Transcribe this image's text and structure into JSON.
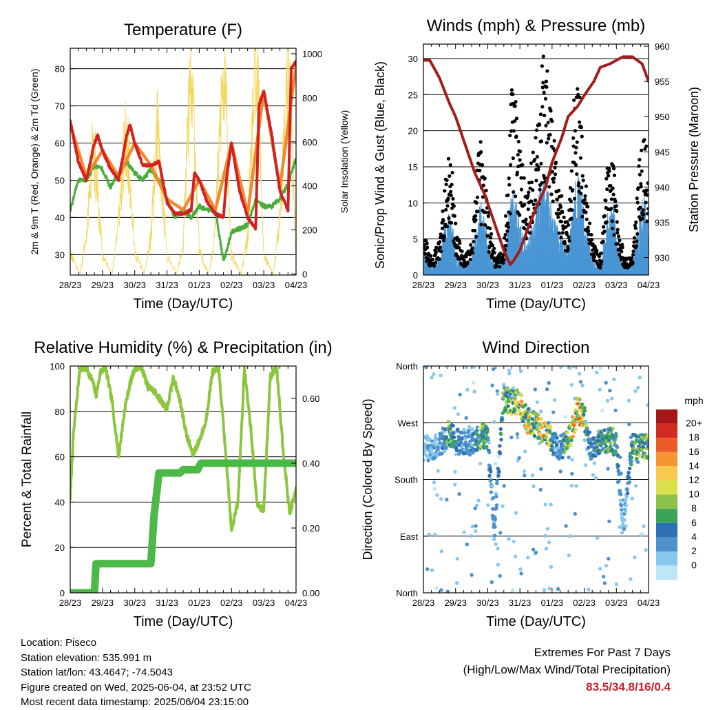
{
  "panels": {
    "temperature": {
      "title": "Temperature (F)",
      "ylabel_left": "2m & 9m T (Red, Orange) & 2m Td (Green)",
      "ylabel_right": "Solar Insolation (Yellow)",
      "xlabel": "Time (Day/UTC)"
    },
    "winds": {
      "title": "Winds (mph) & Pressure (mb)",
      "ylabel_left": "Sonic/Prop Wind & Gust (Blue, Black)",
      "ylabel_right": "Station Pressure (Maroon)",
      "xlabel": "Time (Day/UTC)"
    },
    "humidity": {
      "title": "Relative Humidity (%) & Precipitation (in)",
      "ylabel_left": "Percent & Total Rainfall",
      "xlabel": "Time (Day/UTC)"
    },
    "direction": {
      "title": "Wind Direction",
      "ylabel_left": "Direction (Colored By Speed)",
      "xlabel": "Time (Day/UTC)",
      "colorbar_title": "mph",
      "colorbar_labels": [
        "20+",
        "18",
        "16",
        "14",
        "12",
        "10",
        "8",
        "6",
        "4",
        "2",
        "0"
      ]
    }
  },
  "info": {
    "location": "Location: Piseco",
    "elevation": "Station elevation: 535.991 m",
    "latlon": "Station lat/lon: 43.4647; -74.5043",
    "created": "Figure created on Wed, 2025-06-04, at 23:52 UTC",
    "recent": "Most recent data timestamp: 2025/06/04 23:15:00"
  },
  "extremes": {
    "title": "Extremes For Past 7 Days",
    "subtitle": "(High/Low/Max Wind/Total Precipitation)",
    "values": "83.5/34.8/16/0.4"
  },
  "colors": {
    "temp2m": "#d42020",
    "temp9m": "#f08a2c",
    "dewpoint": "#4aac3c",
    "insolation": "#f5d659",
    "wind": "#4a96d4",
    "gust": "#000000",
    "pressure": "#a21c1c",
    "rh": "#8cc63f",
    "precip": "#4cb848",
    "extremes": "#c8202a",
    "speed_scale": [
      "#bde6f8",
      "#88c8ee",
      "#4c90cc",
      "#2d70b3",
      "#3aa55a",
      "#8bc34a",
      "#d9e04a",
      "#f7c94e",
      "#f49634",
      "#ec5c28",
      "#d32a22",
      "#a51717"
    ]
  },
  "chart_data": [
    {
      "type": "line",
      "title": "Temperature (F)",
      "xlabel": "Time (Day/UTC)",
      "ylabel": "2m & 9m T (Red, Orange) & 2m Td (Green)",
      "y2label": "Solar Insolation (Yellow)",
      "x_ticks": [
        "28/23",
        "29/23",
        "30/23",
        "31/23",
        "01/23",
        "02/23",
        "03/23",
        "04/23"
      ],
      "xlim": [
        0,
        7
      ],
      "ylim": [
        24.5,
        85.5
      ],
      "y_ticks": [
        30,
        40,
        50,
        60,
        70,
        80
      ],
      "y2lim": [
        -5,
        1025
      ],
      "y2_ticks": [
        0,
        200,
        400,
        600,
        800,
        1000
      ],
      "grid": true,
      "series": [
        {
          "name": "2m T",
          "color": "#d42020",
          "axis": "left",
          "x": [
            0,
            0.25,
            0.5,
            0.75,
            0.85,
            1.0,
            1.25,
            1.5,
            1.75,
            1.85,
            2.0,
            2.25,
            2.5,
            2.75,
            3.0,
            3.25,
            3.5,
            3.75,
            3.85,
            4.0,
            4.25,
            4.5,
            4.75,
            4.85,
            5.0,
            5.25,
            5.5,
            5.75,
            5.85,
            6.0,
            6.25,
            6.5,
            6.75,
            6.85,
            7.0
          ],
          "y": [
            66,
            55,
            50,
            60,
            62,
            58,
            53,
            50,
            62,
            65,
            60,
            54,
            54,
            55,
            44,
            41,
            41,
            42,
            52,
            50,
            44,
            41,
            40,
            51,
            60,
            47,
            40,
            37,
            70,
            74,
            62,
            47,
            42,
            80,
            82
          ]
        },
        {
          "name": "9m T",
          "color": "#f08a2c",
          "axis": "left",
          "x": [
            0,
            0.5,
            1.0,
            1.5,
            2.0,
            2.5,
            3.0,
            3.5,
            4.0,
            4.5,
            5.0,
            5.5,
            6.0,
            6.5,
            7.0
          ],
          "y": [
            65,
            51,
            58,
            51,
            60,
            54,
            45,
            42,
            50,
            42,
            60,
            41,
            74,
            48,
            81
          ]
        },
        {
          "name": "2m Td",
          "color": "#4aac3c",
          "axis": "left",
          "x": [
            0,
            0.25,
            0.5,
            0.75,
            1.0,
            1.25,
            1.5,
            1.75,
            2.0,
            2.25,
            2.5,
            2.75,
            3.0,
            3.25,
            3.5,
            3.75,
            4.0,
            4.25,
            4.5,
            4.75,
            5.0,
            5.25,
            5.5,
            5.75,
            6.0,
            6.25,
            6.5,
            6.75,
            7.0
          ],
          "y": [
            42,
            50,
            50,
            54,
            53,
            48,
            52,
            55,
            52,
            50,
            53,
            50,
            45,
            40,
            42,
            40,
            43,
            42,
            42,
            28,
            36,
            37,
            38,
            45,
            43,
            43,
            45,
            49,
            56
          ]
        },
        {
          "name": "Solar Insolation",
          "color": "#f5d659",
          "axis": "right",
          "x": [
            0,
            0.3,
            0.5,
            0.7,
            0.82,
            1.0,
            1.3,
            1.5,
            1.7,
            1.82,
            2.0,
            2.3,
            2.5,
            2.7,
            2.82,
            3.0,
            3.3,
            3.5,
            3.7,
            3.82,
            4.0,
            4.3,
            4.5,
            4.7,
            4.82,
            5.0,
            5.3,
            5.5,
            5.7,
            5.82,
            6.0,
            6.3,
            6.5,
            6.7,
            6.82,
            7.0
          ],
          "y": [
            120,
            0,
            200,
            780,
            500,
            100,
            0,
            300,
            720,
            650,
            120,
            0,
            200,
            780,
            500,
            100,
            0,
            150,
            980,
            900,
            120,
            0,
            250,
            1000,
            950,
            100,
            0,
            200,
            1000,
            1000,
            100,
            0,
            300,
            980,
            920,
            80
          ]
        }
      ]
    },
    {
      "type": "scatter",
      "title": "Winds (mph) & Pressure (mb)",
      "xlabel": "Time (Day/UTC)",
      "ylabel": "Sonic/Prop Wind & Gust (Blue, Black)",
      "y2label": "Station Pressure (Maroon)",
      "x_ticks": [
        "28/23",
        "29/23",
        "30/23",
        "31/23",
        "01/23",
        "02/23",
        "03/23",
        "04/23"
      ],
      "xlim": [
        0,
        7
      ],
      "ylim": [
        0,
        32
      ],
      "y_ticks": [
        0,
        5,
        10,
        15,
        20,
        25,
        30
      ],
      "y2lim": [
        927.5,
        960.3
      ],
      "y2_ticks": [
        930,
        935,
        940,
        945,
        950,
        955,
        960
      ],
      "grid": true,
      "series": [
        {
          "name": "Sonic/Prop Wind",
          "color": "#4a96d4",
          "axis": "left",
          "x": [
            0,
            0.25,
            0.5,
            0.75,
            0.9,
            1.0,
            1.25,
            1.5,
            1.75,
            1.9,
            2.0,
            2.25,
            2.5,
            2.75,
            2.9,
            3.0,
            3.25,
            3.5,
            3.75,
            3.9,
            4.0,
            4.25,
            4.5,
            4.75,
            4.9,
            5.0,
            5.25,
            5.5,
            5.75,
            5.9,
            6.0,
            6.25,
            6.5,
            6.75,
            6.9,
            7.0
          ],
          "y": [
            3,
            1,
            2,
            8,
            6,
            3,
            1,
            2,
            9,
            8,
            4,
            1,
            2,
            10,
            9,
            6,
            4,
            8,
            12,
            10,
            8,
            5,
            3,
            12,
            11,
            7,
            2,
            1,
            8,
            10,
            4,
            1,
            1,
            9,
            10,
            5
          ]
        },
        {
          "name": "Gust",
          "color": "#000000",
          "axis": "left",
          "x": [
            0,
            0.25,
            0.5,
            0.75,
            0.9,
            1.0,
            1.25,
            1.5,
            1.75,
            1.9,
            2.0,
            2.25,
            2.5,
            2.75,
            2.9,
            3.0,
            3.25,
            3.5,
            3.75,
            3.9,
            4.0,
            4.25,
            4.5,
            4.75,
            4.9,
            5.0,
            5.25,
            5.5,
            5.75,
            5.9,
            6.0,
            6.25,
            6.5,
            6.75,
            6.9,
            7.0
          ],
          "y": [
            5,
            2,
            4,
            15,
            12,
            6,
            2,
            4,
            16,
            14,
            8,
            2,
            3,
            22,
            20,
            15,
            10,
            18,
            27,
            22,
            18,
            10,
            6,
            26,
            20,
            14,
            4,
            2,
            15,
            14,
            8,
            2,
            2,
            16,
            18,
            10
          ]
        },
        {
          "name": "Station Pressure",
          "color": "#a21c1c",
          "axis": "right",
          "x": [
            0,
            0.2,
            0.5,
            0.8,
            1.0,
            1.3,
            1.6,
            1.9,
            2.2,
            2.5,
            2.7,
            2.8,
            3.0,
            3.2,
            3.5,
            3.8,
            4.0,
            4.3,
            4.5,
            4.8,
            5.0,
            5.3,
            5.5,
            5.8,
            6.0,
            6.2,
            6.5,
            6.8,
            7.0
          ],
          "y": [
            958,
            958,
            955.5,
            952,
            950,
            946,
            942,
            939,
            935,
            931,
            929,
            929.5,
            931,
            933.5,
            937,
            940,
            943.5,
            947,
            950,
            951.5,
            953,
            955,
            957,
            957.5,
            958,
            958.5,
            958.5,
            957.5,
            955
          ]
        }
      ]
    },
    {
      "type": "line",
      "title": "Relative Humidity (%) & Precipitation (in)",
      "xlabel": "Time (Day/UTC)",
      "ylabel": "Percent & Total Rainfall",
      "x_ticks": [
        "28/23",
        "29/23",
        "30/23",
        "31/23",
        "01/23",
        "02/23",
        "03/23",
        "04/23"
      ],
      "xlim": [
        0,
        7
      ],
      "ylim": [
        0,
        100
      ],
      "y_ticks": [
        0,
        20,
        40,
        60,
        80,
        100
      ],
      "y2lim": [
        0,
        0.7
      ],
      "y2_ticks": [
        "0.00",
        "0.20",
        "0.40",
        "0.60"
      ],
      "grid": true,
      "series": [
        {
          "name": "Relative Humidity",
          "color": "#8cc63f",
          "axis": "left",
          "x": [
            0,
            0.1,
            0.3,
            0.5,
            0.7,
            0.8,
            0.95,
            1.1,
            1.3,
            1.5,
            1.7,
            1.85,
            2.0,
            2.2,
            2.4,
            2.6,
            2.8,
            3.0,
            3.2,
            3.4,
            3.6,
            3.8,
            4.0,
            4.2,
            4.4,
            4.6,
            4.8,
            5.0,
            5.2,
            5.4,
            5.6,
            5.8,
            6.0,
            6.2,
            6.4,
            6.6,
            6.8,
            7.0
          ],
          "y": [
            42,
            70,
            99,
            99,
            93,
            87,
            98,
            99,
            84,
            60,
            82,
            92,
            99,
            100,
            91,
            89,
            85,
            81,
            95,
            85,
            70,
            61,
            67,
            75,
            97,
            99,
            65,
            28,
            40,
            99,
            72,
            38,
            37,
            95,
            100,
            63,
            35,
            45
          ]
        },
        {
          "name": "Total Precipitation",
          "color": "#4cb848",
          "axis": "right",
          "x": [
            0,
            0.75,
            0.8,
            2.5,
            2.6,
            2.75,
            3.4,
            3.5,
            3.95,
            4.05,
            7.0
          ],
          "y": [
            0.0,
            0.0,
            0.09,
            0.09,
            0.24,
            0.37,
            0.37,
            0.38,
            0.38,
            0.4,
            0.4
          ]
        }
      ]
    },
    {
      "type": "scatter",
      "title": "Wind Direction",
      "xlabel": "Time (Day/UTC)",
      "ylabel": "Direction (Colored By Speed)",
      "x_ticks": [
        "28/23",
        "29/23",
        "30/23",
        "31/23",
        "01/23",
        "02/23",
        "03/23",
        "04/23"
      ],
      "xlim": [
        0,
        7
      ],
      "y_ticks": [
        "North",
        "East",
        "South",
        "West",
        "North"
      ],
      "ylim": [
        0,
        360
      ],
      "color_by": "speed (mph)",
      "colorbar_labels": [
        "0",
        "2",
        "4",
        "6",
        "8",
        "10",
        "12",
        "14",
        "16",
        "18",
        "20+"
      ],
      "series": [
        {
          "name": "Direction",
          "x": [
            0.2,
            0.5,
            0.8,
            1.0,
            1.2,
            1.5,
            1.8,
            2.0,
            2.2,
            2.5,
            2.8,
            3.0,
            3.2,
            3.5,
            3.8,
            4.0,
            4.2,
            4.5,
            4.8,
            5.0,
            5.2,
            5.5,
            5.8,
            6.0,
            6.2,
            6.5,
            6.8,
            7.0
          ],
          "y": [
            230,
            235,
            255,
            245,
            235,
            240,
            250,
            245,
            100,
            310,
            300,
            305,
            275,
            265,
            255,
            240,
            230,
            240,
            290,
            280,
            230,
            240,
            245,
            235,
            100,
            235,
            230,
            235
          ],
          "speed": [
            2,
            3,
            8,
            6,
            4,
            4,
            9,
            6,
            2,
            8,
            11,
            12,
            13,
            10,
            15,
            7,
            3,
            10,
            15,
            12,
            4,
            7,
            8,
            6,
            1,
            7,
            9,
            8
          ]
        }
      ]
    }
  ]
}
